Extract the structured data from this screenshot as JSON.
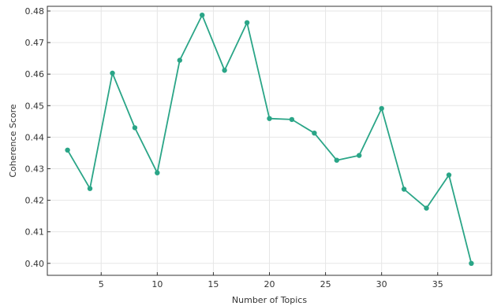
{
  "chart_data": {
    "type": "line",
    "title": "",
    "xlabel": "Number of Topics",
    "ylabel": "Coherence Score",
    "x": [
      2,
      4,
      6,
      8,
      10,
      12,
      14,
      16,
      18,
      20,
      22,
      24,
      26,
      28,
      30,
      32,
      34,
      36,
      38
    ],
    "series": [
      {
        "values": [
          0.4359,
          0.4237,
          0.4603,
          0.443,
          0.4287,
          0.4644,
          0.4787,
          0.4612,
          0.4763,
          0.4459,
          0.4456,
          0.4413,
          0.4327,
          0.4342,
          0.4491,
          0.4235,
          0.4175,
          0.428,
          0.4
        ]
      }
    ],
    "xlim": [
      0.2,
      39.8
    ],
    "ylim": [
      0.3962,
      0.4815
    ],
    "xticks": [
      5,
      10,
      15,
      20,
      25,
      30,
      35
    ],
    "yticks": [
      0.4,
      0.41,
      0.42,
      0.43,
      0.44,
      0.45,
      0.46,
      0.47,
      0.48
    ],
    "ytick_labels": [
      "0.40",
      "0.41",
      "0.42",
      "0.43",
      "0.44",
      "0.45",
      "0.46",
      "0.47",
      "0.48"
    ],
    "grid": true,
    "legend": "none",
    "colors": {
      "line": "#2aa587",
      "grid": "#e6e6e6",
      "axis": "#333333"
    }
  }
}
